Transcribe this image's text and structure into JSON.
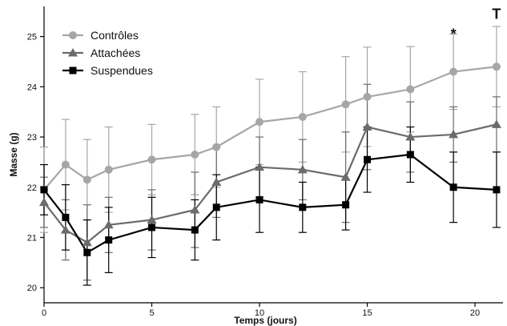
{
  "chart_data": {
    "type": "line",
    "xlabel": "Temps (jours)",
    "ylabel": "Masse (g)",
    "xlim": [
      0,
      21.3
    ],
    "ylim": [
      19.7,
      25.6
    ],
    "xticks": [
      0,
      5,
      10,
      15,
      20
    ],
    "yticks": [
      20,
      21,
      22,
      23,
      24,
      25
    ],
    "grid": false,
    "legend_position": "top-left",
    "series": [
      {
        "name": "Contrôles",
        "marker": "circle",
        "color": "#a6a6a6",
        "x": [
          0,
          1,
          2,
          3,
          5,
          7,
          8,
          10,
          12,
          14,
          15,
          17,
          19,
          21
        ],
        "y": [
          21.95,
          22.45,
          22.15,
          22.35,
          22.55,
          22.65,
          22.8,
          23.3,
          23.4,
          23.65,
          23.8,
          23.95,
          24.3,
          24.4
        ],
        "err": [
          0.85,
          0.9,
          0.8,
          0.85,
          0.7,
          0.8,
          0.8,
          0.85,
          0.9,
          0.95,
          0.99,
          0.85,
          0.75,
          0.8
        ]
      },
      {
        "name": "Attachées",
        "marker": "triangle",
        "color": "#6b6b6b",
        "x": [
          0,
          1,
          2,
          3,
          5,
          7,
          8,
          10,
          12,
          14,
          15,
          17,
          19,
          21
        ],
        "y": [
          21.7,
          21.15,
          20.9,
          21.25,
          21.35,
          21.55,
          22.1,
          22.4,
          22.35,
          22.2,
          23.2,
          23.0,
          23.05,
          23.25
        ],
        "err": [
          0.5,
          0.6,
          0.75,
          0.55,
          0.6,
          0.75,
          0.7,
          0.6,
          0.6,
          0.9,
          0.85,
          0.7,
          0.55,
          0.55
        ]
      },
      {
        "name": "Suspendues",
        "marker": "square",
        "color": "#000000",
        "x": [
          0,
          1,
          2,
          3,
          5,
          7,
          8,
          10,
          12,
          14,
          15,
          17,
          19,
          21
        ],
        "y": [
          21.95,
          21.4,
          20.7,
          20.95,
          21.2,
          21.15,
          21.6,
          21.75,
          21.6,
          21.65,
          22.55,
          22.65,
          22.0,
          21.95
        ],
        "err": [
          0.5,
          0.65,
          0.65,
          0.65,
          0.6,
          0.6,
          0.65,
          0.65,
          0.5,
          0.5,
          0.65,
          0.55,
          0.7,
          0.75
        ]
      }
    ],
    "annotations": [
      {
        "text": "*",
        "x": 19,
        "y": 25.05
      },
      {
        "text": "T",
        "x": 21,
        "y": 25.45
      }
    ]
  }
}
